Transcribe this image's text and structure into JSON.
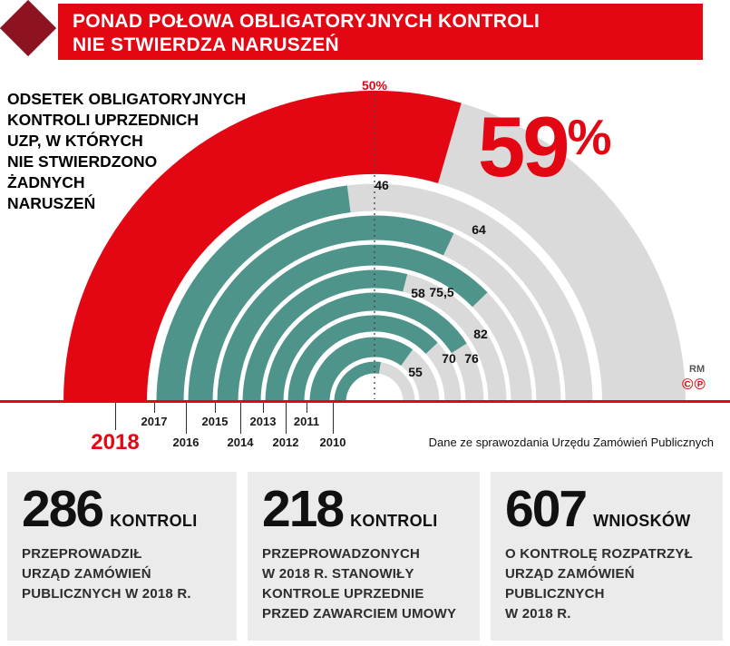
{
  "colors": {
    "red": "#e30613",
    "dark_red": "#8e1320",
    "teal": "#4f948b",
    "ring_gray": "#dadada",
    "card_bg": "#ebebeb"
  },
  "banner": {
    "line1": "PONAD POŁOWA OBLIGATORYJNYCH KONTROLI",
    "line2": "NIE STWIERDZA NARUSZEŃ"
  },
  "caption": "ODSETEK OBLIGATORYJNYCH\nKONTROLI UPRZEDNICH\nUZP, W KTÓRYCH\nNIE STWIERDZONO\nŻADNYCH\nNARUSZEŃ",
  "chart_data": {
    "type": "radial-bar",
    "title": "ODSETEK OBLIGATORYJNYCH KONTROLI UPRZEDNICH UZP, W KTÓRYCH NIE STWIERDZONO ŻADNYCH NARUSZEŃ",
    "unit": "%",
    "range": [
      0,
      100
    ],
    "axis_reference": {
      "label": "50%",
      "value": 50
    },
    "highlight_year": "2018",
    "highlight_label": {
      "number": "59",
      "percent": "%"
    },
    "series": [
      {
        "year": "2018",
        "value": 59,
        "display": "59"
      },
      {
        "year": "2017",
        "value": 46,
        "display": "46"
      },
      {
        "year": "2016",
        "value": 64,
        "display": "64"
      },
      {
        "year": "2015",
        "value": 75.5,
        "display": "75,5"
      },
      {
        "year": "2014",
        "value": 58,
        "display": "58"
      },
      {
        "year": "2013",
        "value": 82,
        "display": "82"
      },
      {
        "year": "2012",
        "value": 76,
        "display": "76"
      },
      {
        "year": "2011",
        "value": 70,
        "display": "70"
      },
      {
        "year": "2010",
        "value": 55,
        "display": "55"
      }
    ],
    "source": "Dane ze sprawozdania Urzędu Zamówień Publicznych"
  },
  "credits": {
    "author": "RM",
    "copyright": "©",
    "phonogram": "℗"
  },
  "cards": [
    {
      "number": "286",
      "unit": "KONTROLI",
      "text": "PRZEPROWADZIŁ\nURZĄD ZAMÓWIEŃ\nPUBLICZNYCH W 2018 R."
    },
    {
      "number": "218",
      "unit": "KONTROLI",
      "text": "PRZEPROWADZONYCH\nW 2018 R. STANOWIŁY\nKONTROLE UPRZEDNIE\nPRZED ZAWARCIEM UMOWY"
    },
    {
      "number": "607",
      "unit": "WNIOSKÓW",
      "text": "O KONTROLĘ ROZPATRZYŁ\nURZĄD ZAMÓWIEŃ\nPUBLICZNYCH\nW 2018 R."
    }
  ]
}
